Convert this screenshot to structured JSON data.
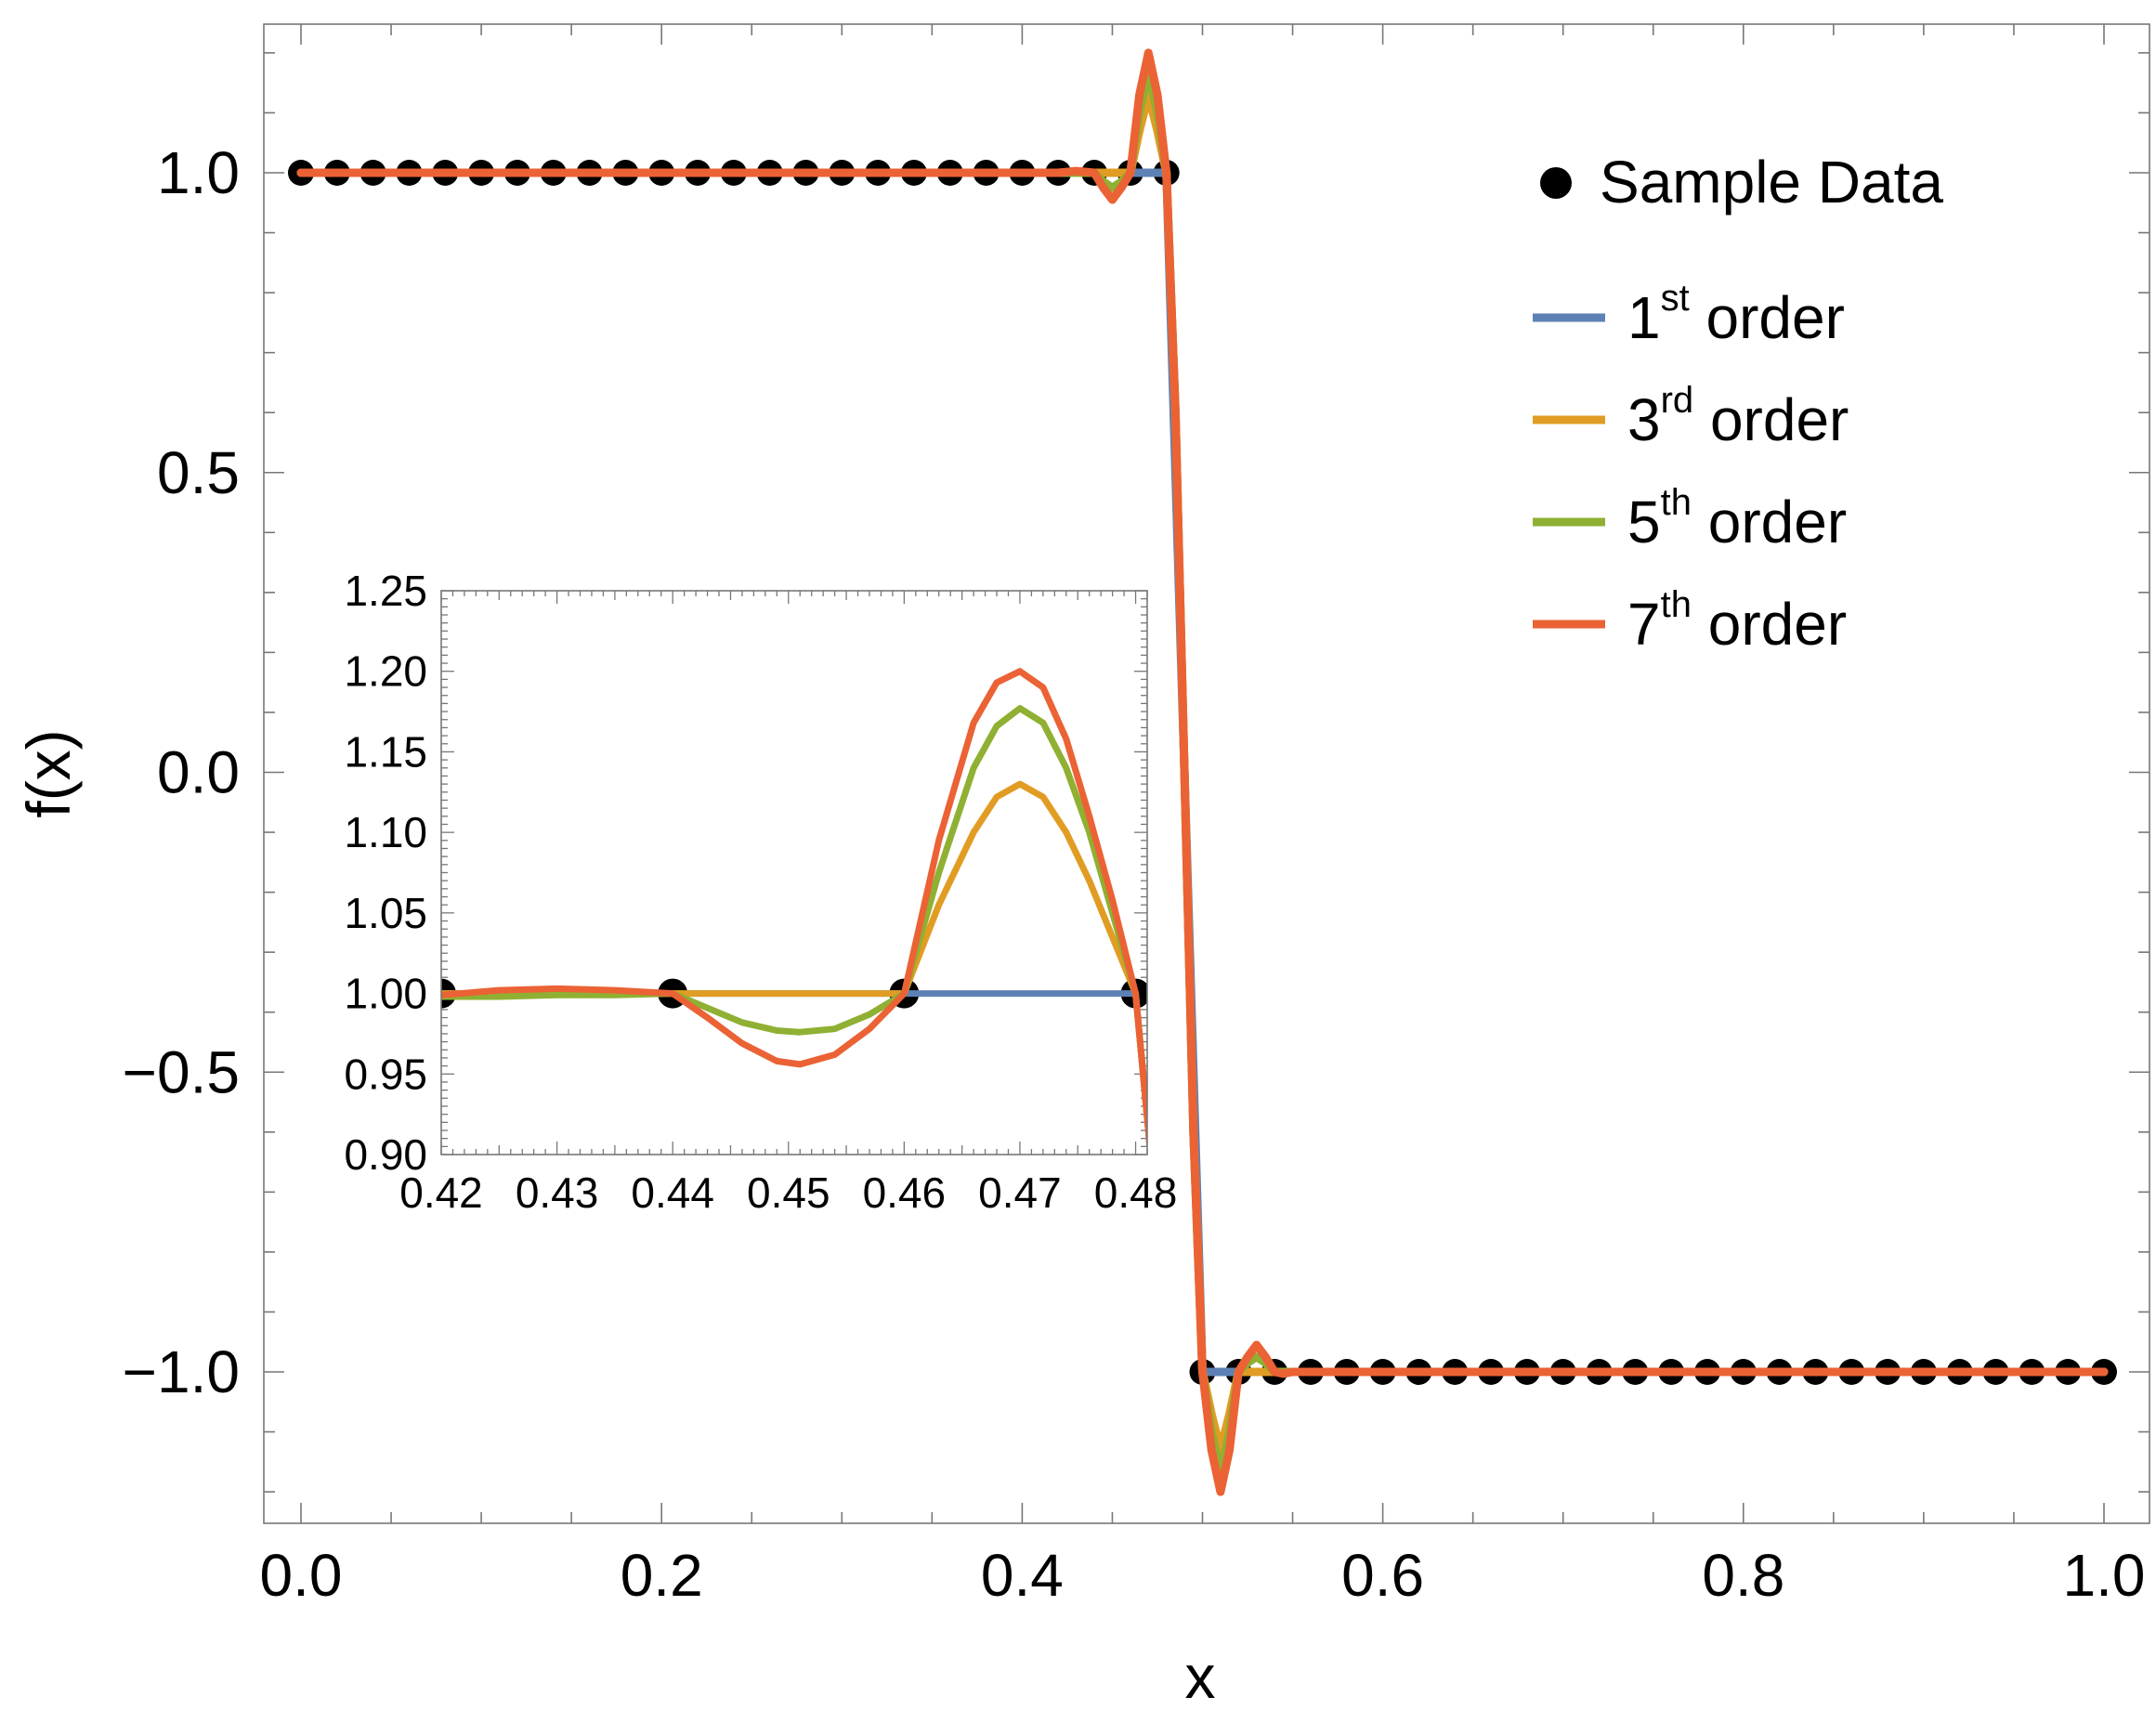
{
  "chart_data": [
    {
      "type": "line",
      "xlabel": "x",
      "ylabel": "f(x)",
      "xlim": [
        0,
        1
      ],
      "ylim": [
        -1.25,
        1.25
      ],
      "xticks": [
        "0.0",
        "0.2",
        "0.4",
        "0.6",
        "0.8",
        "1.0"
      ],
      "yticks": [
        "−1.0",
        "−0.5",
        "0.0",
        "0.5",
        "1.0"
      ],
      "ytick_values": [
        -1.0,
        -0.5,
        0.0,
        0.5,
        1.0
      ],
      "grid": false,
      "legend_position": "top-right",
      "legend": [
        {
          "name": "Sample Data",
          "marker": "point",
          "color": "#000000"
        },
        {
          "name": "1st order",
          "main": "1",
          "sup": "st",
          "rest": " order",
          "color": "#5E81B5"
        },
        {
          "name": "3rd order",
          "main": "3",
          "sup": "rd",
          "rest": " order",
          "color": "#E19C24"
        },
        {
          "name": "5th order",
          "main": "5",
          "sup": "th",
          "rest": " order",
          "color": "#8FB032"
        },
        {
          "name": "7th order",
          "main": "7",
          "sup": "th",
          "rest": " order",
          "color": "#EB6235"
        }
      ],
      "sample_data": {
        "x": [
          0.0,
          0.02,
          0.04,
          0.06,
          0.08,
          0.1,
          0.12,
          0.14,
          0.16,
          0.18,
          0.2,
          0.22,
          0.24,
          0.26,
          0.28,
          0.3,
          0.32,
          0.34,
          0.36,
          0.38,
          0.4,
          0.42,
          0.44,
          0.46,
          0.48,
          0.5,
          0.52,
          0.54,
          0.56,
          0.58,
          0.6,
          0.62,
          0.64,
          0.66,
          0.68,
          0.7,
          0.72,
          0.74,
          0.76,
          0.78,
          0.8,
          0.82,
          0.84,
          0.86,
          0.88,
          0.9,
          0.92,
          0.94,
          0.96,
          0.98,
          1.0
        ],
        "y": [
          1,
          1,
          1,
          1,
          1,
          1,
          1,
          1,
          1,
          1,
          1,
          1,
          1,
          1,
          1,
          1,
          1,
          1,
          1,
          1,
          1,
          1,
          1,
          1,
          1,
          -1,
          -1,
          -1,
          -1,
          -1,
          -1,
          -1,
          -1,
          -1,
          -1,
          -1,
          -1,
          -1,
          -1,
          -1,
          -1,
          -1,
          -1,
          -1,
          -1,
          -1,
          -1,
          -1,
          -1,
          -1,
          -1
        ]
      },
      "series": [
        {
          "name": "1st order",
          "color": "#5E81B5",
          "x": [
            0.0,
            0.48,
            0.49,
            0.5,
            1.0
          ],
          "y": [
            1.0,
            1.0,
            0.0,
            -1.0,
            -1.0
          ]
        },
        {
          "name": "3rd order",
          "color": "#E19C24",
          "x": [
            0.0,
            0.46,
            0.465,
            0.47,
            0.475,
            0.48,
            0.485,
            0.49,
            0.495,
            0.5,
            0.505,
            0.51,
            0.515,
            0.52,
            0.525,
            0.54,
            1.0
          ],
          "y": [
            1.0,
            1.0,
            1.07,
            1.13,
            1.07,
            1.0,
            0.6,
            0.0,
            -0.6,
            -1.0,
            -1.07,
            -1.13,
            -1.07,
            -1.0,
            -1.0,
            -1.0,
            -1.0
          ]
        },
        {
          "name": "5th order",
          "color": "#8FB032",
          "x": [
            0.0,
            0.43,
            0.44,
            0.445,
            0.45,
            0.455,
            0.46,
            0.465,
            0.47,
            0.475,
            0.48,
            0.485,
            0.49,
            0.495,
            0.5,
            0.505,
            0.51,
            0.515,
            0.52,
            0.525,
            0.53,
            0.535,
            0.54,
            0.545,
            0.55,
            0.56,
            1.0
          ],
          "y": [
            1.0,
            1.0,
            1.0,
            0.985,
            0.975,
            0.985,
            1.0,
            1.1,
            1.17,
            1.1,
            1.0,
            0.6,
            0.0,
            -0.6,
            -1.0,
            -1.1,
            -1.17,
            -1.1,
            -1.0,
            -0.985,
            -0.975,
            -0.985,
            -1.0,
            -1.0,
            -1.0,
            -1.0,
            -1.0
          ]
        },
        {
          "name": "7th order",
          "color": "#EB6235",
          "x": [
            0.0,
            0.42,
            0.43,
            0.44,
            0.445,
            0.45,
            0.455,
            0.46,
            0.465,
            0.47,
            0.475,
            0.48,
            0.485,
            0.49,
            0.495,
            0.5,
            0.505,
            0.51,
            0.515,
            0.52,
            0.525,
            0.53,
            0.535,
            0.54,
            0.545,
            0.55,
            0.56,
            0.57,
            1.0
          ],
          "y": [
            1.0,
            1.0,
            1.003,
            1.0,
            0.975,
            0.955,
            0.975,
            1.0,
            1.13,
            1.2,
            1.13,
            1.0,
            0.6,
            0.0,
            -0.6,
            -1.0,
            -1.13,
            -1.2,
            -1.13,
            -1.0,
            -0.975,
            -0.955,
            -0.975,
            -1.0,
            -1.003,
            -1.0,
            -1.0,
            -1.0,
            -1.0
          ]
        }
      ]
    },
    {
      "type": "line",
      "role": "inset",
      "xlim": [
        0.42,
        0.481
      ],
      "ylim": [
        0.9,
        1.25
      ],
      "xticks": [
        "0.42",
        "0.43",
        "0.44",
        "0.45",
        "0.46",
        "0.47",
        "0.48"
      ],
      "xtick_values": [
        0.42,
        0.43,
        0.44,
        0.45,
        0.46,
        0.47,
        0.48
      ],
      "yticks": [
        "0.90",
        "0.95",
        "1.00",
        "1.05",
        "1.10",
        "1.15",
        "1.20",
        "1.25"
      ],
      "ytick_values": [
        0.9,
        0.95,
        1.0,
        1.05,
        1.1,
        1.15,
        1.2,
        1.25
      ],
      "grid": false,
      "sample_data": {
        "x": [
          0.42,
          0.44,
          0.46,
          0.48
        ],
        "y": [
          1.0,
          1.0,
          1.0,
          1.0
        ]
      },
      "series": [
        {
          "name": "1st order",
          "color": "#5E81B5",
          "x": [
            0.42,
            0.48,
            0.4813
          ],
          "y": [
            1.0,
            1.0,
            0.9
          ]
        },
        {
          "name": "3rd order",
          "color": "#E19C24",
          "x": [
            0.42,
            0.46,
            0.463,
            0.466,
            0.468,
            0.47,
            0.472,
            0.474,
            0.476,
            0.478,
            0.48,
            0.4813
          ],
          "y": [
            1.0,
            1.0,
            1.055,
            1.1,
            1.122,
            1.13,
            1.122,
            1.1,
            1.07,
            1.035,
            1.0,
            0.9
          ]
        },
        {
          "name": "5th order",
          "color": "#8FB032",
          "x": [
            0.42,
            0.425,
            0.43,
            0.435,
            0.44,
            0.443,
            0.446,
            0.449,
            0.451,
            0.454,
            0.457,
            0.46,
            0.463,
            0.466,
            0.468,
            0.47,
            0.472,
            0.474,
            0.476,
            0.478,
            0.48,
            0.4813
          ],
          "y": [
            0.998,
            0.998,
            0.999,
            0.999,
            1.0,
            0.991,
            0.982,
            0.977,
            0.976,
            0.978,
            0.987,
            1.0,
            1.075,
            1.14,
            1.166,
            1.177,
            1.168,
            1.14,
            1.1,
            1.05,
            1.0,
            0.9
          ]
        },
        {
          "name": "7th order",
          "color": "#EB6235",
          "x": [
            0.42,
            0.425,
            0.43,
            0.435,
            0.44,
            0.443,
            0.446,
            0.449,
            0.451,
            0.454,
            0.457,
            0.46,
            0.463,
            0.466,
            0.468,
            0.47,
            0.472,
            0.474,
            0.476,
            0.478,
            0.48,
            0.4813
          ],
          "y": [
            0.999,
            1.002,
            1.003,
            1.002,
            1.0,
            0.985,
            0.969,
            0.958,
            0.956,
            0.962,
            0.978,
            1.0,
            1.095,
            1.168,
            1.193,
            1.2,
            1.19,
            1.158,
            1.11,
            1.058,
            1.0,
            0.9
          ]
        }
      ]
    }
  ]
}
